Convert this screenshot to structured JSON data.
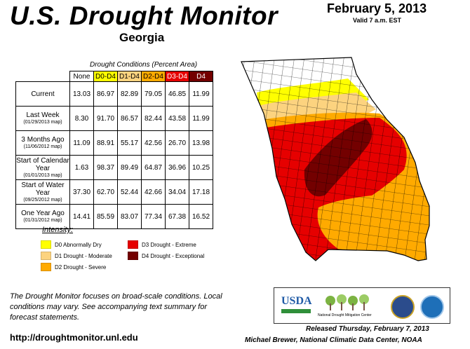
{
  "header": {
    "title": "U.S. Drought Monitor",
    "date": "February 5, 2013",
    "valid": "Valid 7 a.m. EST",
    "state": "Georgia"
  },
  "table": {
    "caption": "Drought Conditions (Percent Area)",
    "columns": [
      "None",
      "D0-D4",
      "D1-D4",
      "D2-D4",
      "D3-D4",
      "D4"
    ],
    "rows": [
      {
        "label": "Current",
        "sub": "",
        "values": [
          "13.03",
          "86.97",
          "82.89",
          "79.05",
          "46.85",
          "11.99"
        ]
      },
      {
        "label": "Last Week",
        "sub": "(01/29/2013 map)",
        "values": [
          "8.30",
          "91.70",
          "86.57",
          "82.44",
          "43.58",
          "11.99"
        ]
      },
      {
        "label": "3 Months Ago",
        "sub": "(11/06/2012 map)",
        "values": [
          "11.09",
          "88.91",
          "55.17",
          "42.56",
          "26.70",
          "13.98"
        ]
      },
      {
        "label": "Start of Calendar Year",
        "sub": "(01/01/2013 map)",
        "values": [
          "1.63",
          "98.37",
          "89.49",
          "64.87",
          "36.96",
          "10.25"
        ]
      },
      {
        "label": "Start of Water Year",
        "sub": "(09/25/2012 map)",
        "values": [
          "37.30",
          "62.70",
          "52.44",
          "42.66",
          "34.04",
          "17.18"
        ]
      },
      {
        "label": "One Year Ago",
        "sub": "(01/31/2012 map)",
        "values": [
          "14.41",
          "85.59",
          "83.07",
          "77.34",
          "67.38",
          "16.52"
        ]
      }
    ]
  },
  "legend": {
    "title": "Intensity:",
    "items": [
      {
        "label": "D0 Abnormally Dry",
        "color": "#ffff00"
      },
      {
        "label": "D1 Drought - Moderate",
        "color": "#fcd37f"
      },
      {
        "label": "D2 Drought - Severe",
        "color": "#ffaa00"
      },
      {
        "label": "D3 Drought - Extreme",
        "color": "#e60000"
      },
      {
        "label": "D4 Drought - Exceptional",
        "color": "#730000"
      }
    ]
  },
  "footer": {
    "notes": "The Drought Monitor focuses on broad-scale conditions. Local conditions may vary. See accompanying text summary for forecast statements.",
    "url": "http://droughtmonitor.unl.edu",
    "released": "Released Thursday, February 7, 2013",
    "author": "Michael Brewer, National Climatic Data Center, NOAA"
  },
  "logos": {
    "usda": "USDA",
    "ndmc": "National Drought Mitigation Center"
  }
}
